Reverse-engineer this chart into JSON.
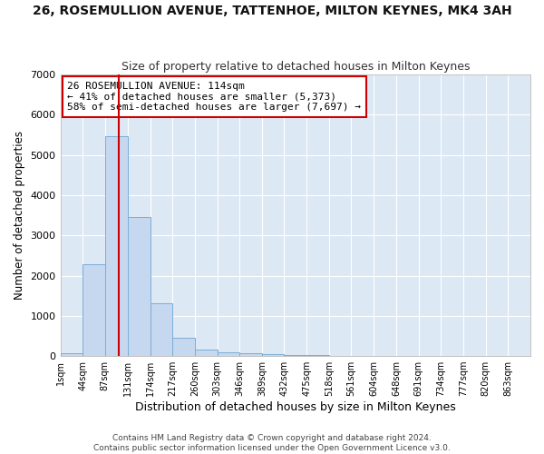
{
  "title": "26, ROSEMULLION AVENUE, TATTENHOE, MILTON KEYNES, MK4 3AH",
  "subtitle": "Size of property relative to detached houses in Milton Keynes",
  "xlabel": "Distribution of detached houses by size in Milton Keynes",
  "ylabel": "Number of detached properties",
  "footer_line1": "Contains HM Land Registry data © Crown copyright and database right 2024.",
  "footer_line2": "Contains public sector information licensed under the Open Government Licence v3.0.",
  "bin_edges": [
    1,
    44,
    87,
    131,
    174,
    217,
    260,
    303,
    346,
    389,
    432,
    475,
    518,
    561,
    604,
    648,
    691,
    734,
    777,
    820,
    863
  ],
  "bar_values": [
    75,
    2280,
    5470,
    3450,
    1310,
    460,
    160,
    100,
    75,
    50,
    30,
    15,
    8,
    5,
    3,
    2,
    1,
    1,
    0,
    0
  ],
  "bar_color": "#c5d8f0",
  "bar_edge_color": "#7aaed6",
  "fig_bg_color": "#ffffff",
  "plot_bg_color": "#dde8f5",
  "grid_color": "#ffffff",
  "property_size": 114,
  "red_line_color": "#cc0000",
  "annotation_text": "26 ROSEMULLION AVENUE: 114sqm\n← 41% of detached houses are smaller (5,373)\n58% of semi-detached houses are larger (7,697) →",
  "annotation_box_color": "#cc0000",
  "ylim": [
    0,
    7000
  ],
  "yticks": [
    0,
    1000,
    2000,
    3000,
    4000,
    5000,
    6000,
    7000
  ]
}
